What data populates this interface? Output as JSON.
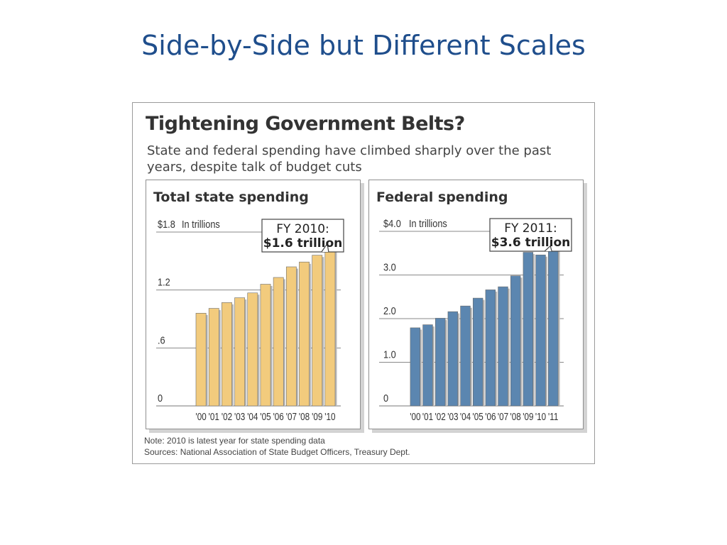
{
  "slide": {
    "title": "Side-by-Side but Different Scales"
  },
  "graphic": {
    "headline": "Tightening Government Belts?",
    "subtitle": "State and federal spending have climbed sharply over the past years, despite talk of budget cuts",
    "note": "Note: 2010 is latest year for state spending data",
    "sources": "Sources: National Association of State Budget Officers, Treasury Dept."
  },
  "colors": {
    "state_bar": "#f2cb7d",
    "federal_bar": "#5b86b0",
    "title": "#1f4e8c"
  },
  "chart_data": [
    {
      "type": "bar",
      "title": "Total state spending",
      "unit_label": "In trillions",
      "categories": [
        "'00",
        "'01",
        "'02",
        "'03",
        "'04",
        "'05",
        "'06",
        "'07",
        "'08",
        "'09",
        "'10"
      ],
      "values": [
        0.96,
        1.01,
        1.07,
        1.12,
        1.17,
        1.26,
        1.33,
        1.44,
        1.49,
        1.56,
        1.65
      ],
      "ylim": [
        0,
        1.8
      ],
      "yticks": [
        0,
        0.6,
        1.2,
        1.8
      ],
      "yticklabels": [
        "0",
        ".6",
        "1.2",
        "$1.8"
      ],
      "callout": {
        "line1": "FY 2010:",
        "line2": "$1.6 trillion",
        "category": "'10"
      },
      "grid": true,
      "legend": "none"
    },
    {
      "type": "bar",
      "title": "Federal spending",
      "unit_label": "In trillions",
      "categories": [
        "'00",
        "'01",
        "'02",
        "'03",
        "'04",
        "'05",
        "'06",
        "'07",
        "'08",
        "'09",
        "'10",
        "'11"
      ],
      "values": [
        1.79,
        1.86,
        2.01,
        2.16,
        2.29,
        2.47,
        2.66,
        2.73,
        2.98,
        3.52,
        3.46,
        3.6
      ],
      "ylim": [
        0,
        4.0
      ],
      "yticks": [
        0,
        1.0,
        2.0,
        3.0,
        4.0
      ],
      "yticklabels": [
        "0",
        "1.0",
        "2.0",
        "3.0",
        "$4.0"
      ],
      "callout": {
        "line1": "FY 2011:",
        "line2": "$3.6 trillion",
        "category": "'11"
      },
      "grid": true,
      "legend": "none"
    }
  ]
}
